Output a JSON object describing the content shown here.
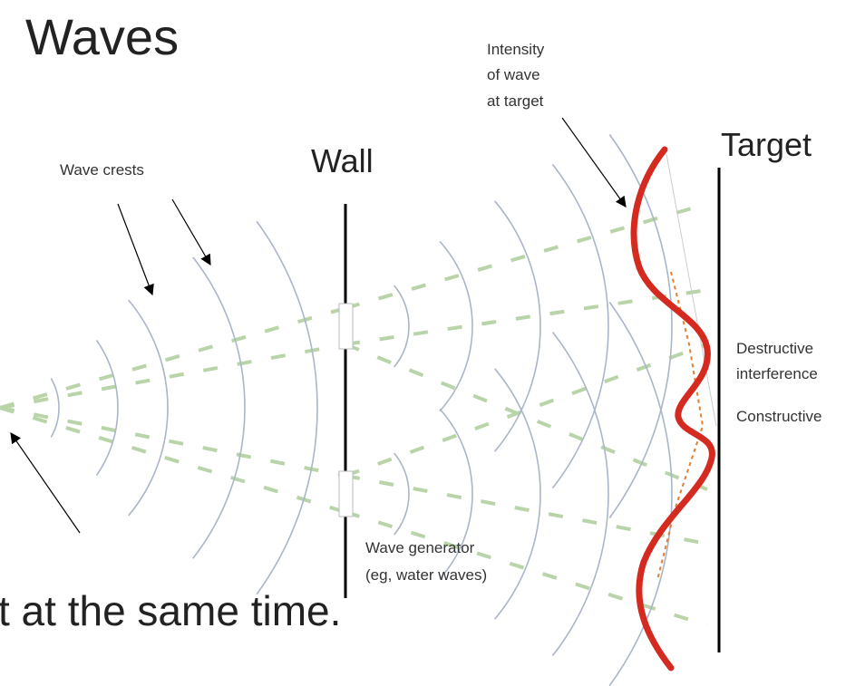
{
  "title": "Waves",
  "labels": {
    "intensity": [
      "Intensity",
      "of wave",
      "at target"
    ],
    "wall": "Wall",
    "target": "Target",
    "wave_crests": "Wave crests",
    "destructive": [
      "Destructive",
      "interference"
    ],
    "constructive": "Constructive",
    "generator": [
      "Wave generator",
      "(eg, water waves)"
    ]
  },
  "caption": "t at the same time."
}
